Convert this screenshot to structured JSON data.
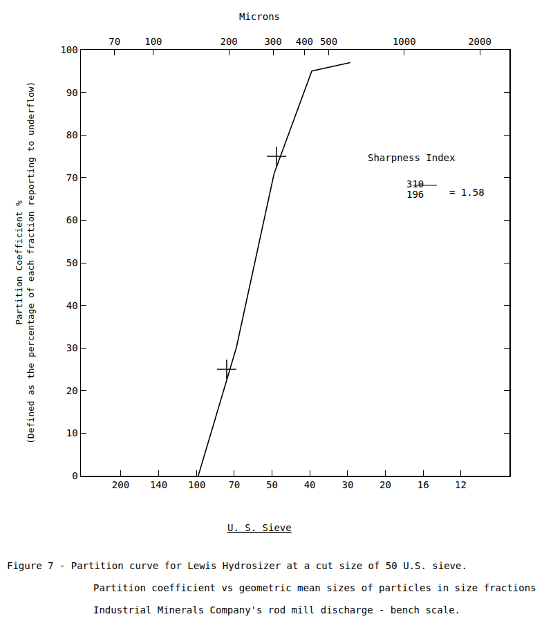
{
  "chart_data": {
    "type": "line",
    "x_label": "Microns",
    "x2_label": "U. S. Sieve",
    "y_label": [
      "Partition Coefficient %",
      "(Defined as the percentage of each fraction reporting to underflow)"
    ],
    "caption": [
      "Figure 7 - Partition curve for Lewis Hydrosizer at a cut size of 50 U.S. sieve.",
      "Partition coefficient vs geometric mean sizes of particles in size fractions",
      "Industrial Minerals Company's rod mill discharge - bench scale."
    ],
    "annotations": [
      "Sharpness Index",
      "310",
      "196",
      "= 1.58"
    ],
    "log": "x",
    "grid": false,
    "color": "#000000",
    "xlim": [
      51.4,
      2627
    ],
    "xticks": [
      70,
      100,
      200,
      300,
      400,
      500,
      1000,
      2000
    ],
    "x2lim": [
      51.4,
      2627
    ],
    "x2ticks": [
      {
        "value": 74,
        "label": "200"
      },
      {
        "value": 105,
        "label": "140"
      },
      {
        "value": 149,
        "label": "100"
      },
      {
        "value": 210,
        "label": "70"
      },
      {
        "value": 297,
        "label": "50"
      },
      {
        "value": 420,
        "label": "40"
      },
      {
        "value": 595,
        "label": "30"
      },
      {
        "value": 841,
        "label": "20"
      },
      {
        "value": 1190,
        "label": "16"
      },
      {
        "value": 1680,
        "label": "12"
      }
    ],
    "ylim": [
      0,
      100
    ],
    "yticks": [
      0,
      10,
      20,
      30,
      40,
      50,
      60,
      70,
      80,
      90,
      100
    ],
    "series": [
      {
        "type": "line",
        "line_style": "solid",
        "x": [
          151,
          214,
          303,
          428,
          609
        ],
        "values": [
          0,
          30,
          71,
          95,
          97
        ]
      },
      {
        "type": "scatter",
        "marker": "cross",
        "x": [
          196,
          310
        ],
        "values": [
          25,
          75
        ]
      }
    ]
  }
}
